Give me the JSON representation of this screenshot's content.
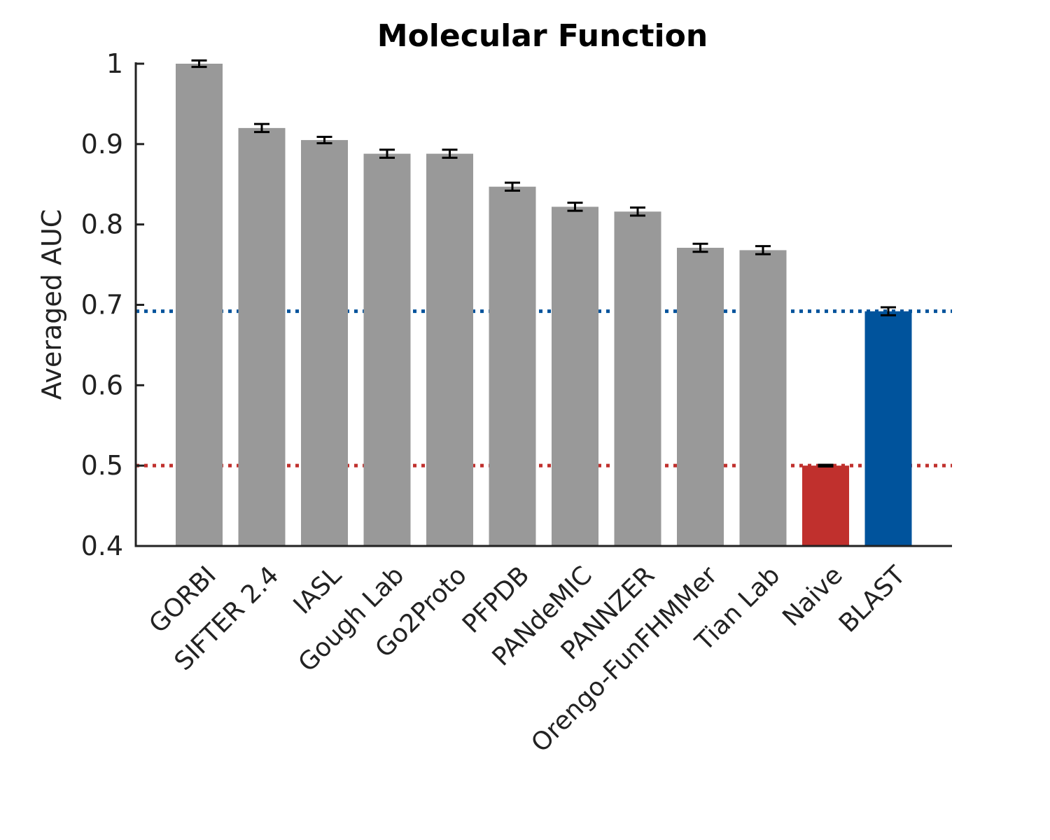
{
  "chart_data": {
    "type": "bar",
    "title": "Molecular Function",
    "xlabel": "",
    "ylabel": "Averaged AUC",
    "ylim": [
      0.4,
      1.0
    ],
    "yticks": [
      0.4,
      0.5,
      0.6,
      0.7,
      0.8,
      0.9,
      1.0
    ],
    "ytick_labels": [
      "0.4",
      "0.5",
      "0.6",
      "0.7",
      "0.8",
      "0.9",
      "1"
    ],
    "categories": [
      "GORBI",
      "SIFTER 2.4",
      "IASL",
      "Gough Lab",
      "Go2Proto",
      "PFPDB",
      "PANdeMIC",
      "PANNZER",
      "Orengo-FunFHMMer",
      "Tian Lab",
      "Naive",
      "BLAST"
    ],
    "values": [
      1.0,
      0.92,
      0.905,
      0.888,
      0.888,
      0.847,
      0.822,
      0.816,
      0.771,
      0.768,
      0.5,
      0.692
    ],
    "errors": [
      0.004,
      0.005,
      0.004,
      0.005,
      0.005,
      0.005,
      0.005,
      0.005,
      0.005,
      0.005,
      0.001,
      0.005
    ],
    "bar_colors": [
      "#999999",
      "#999999",
      "#999999",
      "#999999",
      "#999999",
      "#999999",
      "#999999",
      "#999999",
      "#999999",
      "#999999",
      "#c0302d",
      "#00539c"
    ],
    "reference_lines": [
      {
        "value": 0.692,
        "color": "#00539c",
        "style": "dotted"
      },
      {
        "value": 0.5,
        "color": "#c0302d",
        "style": "dotted"
      }
    ],
    "grid": false,
    "legend": "none"
  }
}
